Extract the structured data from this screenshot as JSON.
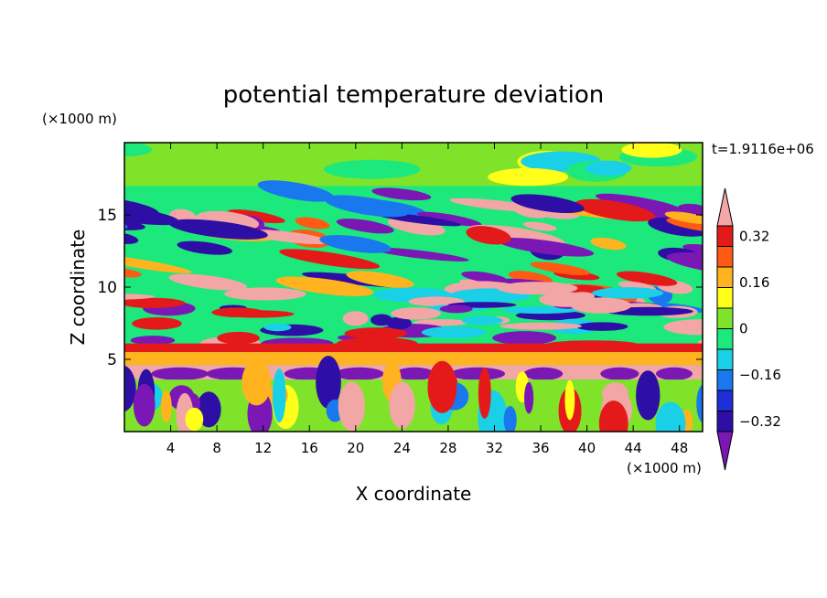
{
  "chart_data": {
    "type": "heatmap",
    "title": "potential temperature deviation",
    "xlabel": "X coordinate",
    "ylabel": "Z coordinate",
    "x_unit": "(×1000 m)",
    "y_unit": "(×1000 m)",
    "time_label": "t=1.9116e+06",
    "xlim": [
      0,
      50
    ],
    "ylim": [
      0,
      20
    ],
    "x_ticks": [
      4,
      8,
      12,
      16,
      20,
      24,
      28,
      32,
      36,
      40,
      44,
      48
    ],
    "y_ticks": [
      5,
      10,
      15
    ],
    "colorbar": {
      "tick_labels": [
        "0.32",
        "0.16",
        "0",
        "−0.16",
        "−0.32"
      ],
      "tick_values": [
        0.32,
        0.16,
        0,
        -0.16,
        -0.32
      ],
      "levels": [
        -0.4,
        -0.32,
        -0.24,
        -0.16,
        -0.08,
        0,
        0.08,
        0.16,
        0.24,
        0.32,
        0.4
      ],
      "colors": [
        "#7a17b5",
        "#2d0fa6",
        "#1f2fd8",
        "#1a78ef",
        "#1ad0e6",
        "#1de87c",
        "#7fe32a",
        "#ffff19",
        "#ffb31f",
        "#ff5a14",
        "#e41a1a",
        "#f2a6a6"
      ]
    },
    "field_description_bands": [
      {
        "z_range": [
          0,
          4
        ],
        "pattern": "vertical convective cells, alternating warm/cold"
      },
      {
        "z_range": [
          4,
          6
        ],
        "pattern": "near-uniform warm layer with cold lenses"
      },
      {
        "z_range": [
          6,
          10
        ],
        "pattern": "mixed warm/cold layer"
      },
      {
        "z_range": [
          10,
          17
        ],
        "pattern": "tilted gravity-wave bands"
      },
      {
        "z_range": [
          17,
          20
        ],
        "pattern": "near-zero anomaly"
      }
    ]
  }
}
